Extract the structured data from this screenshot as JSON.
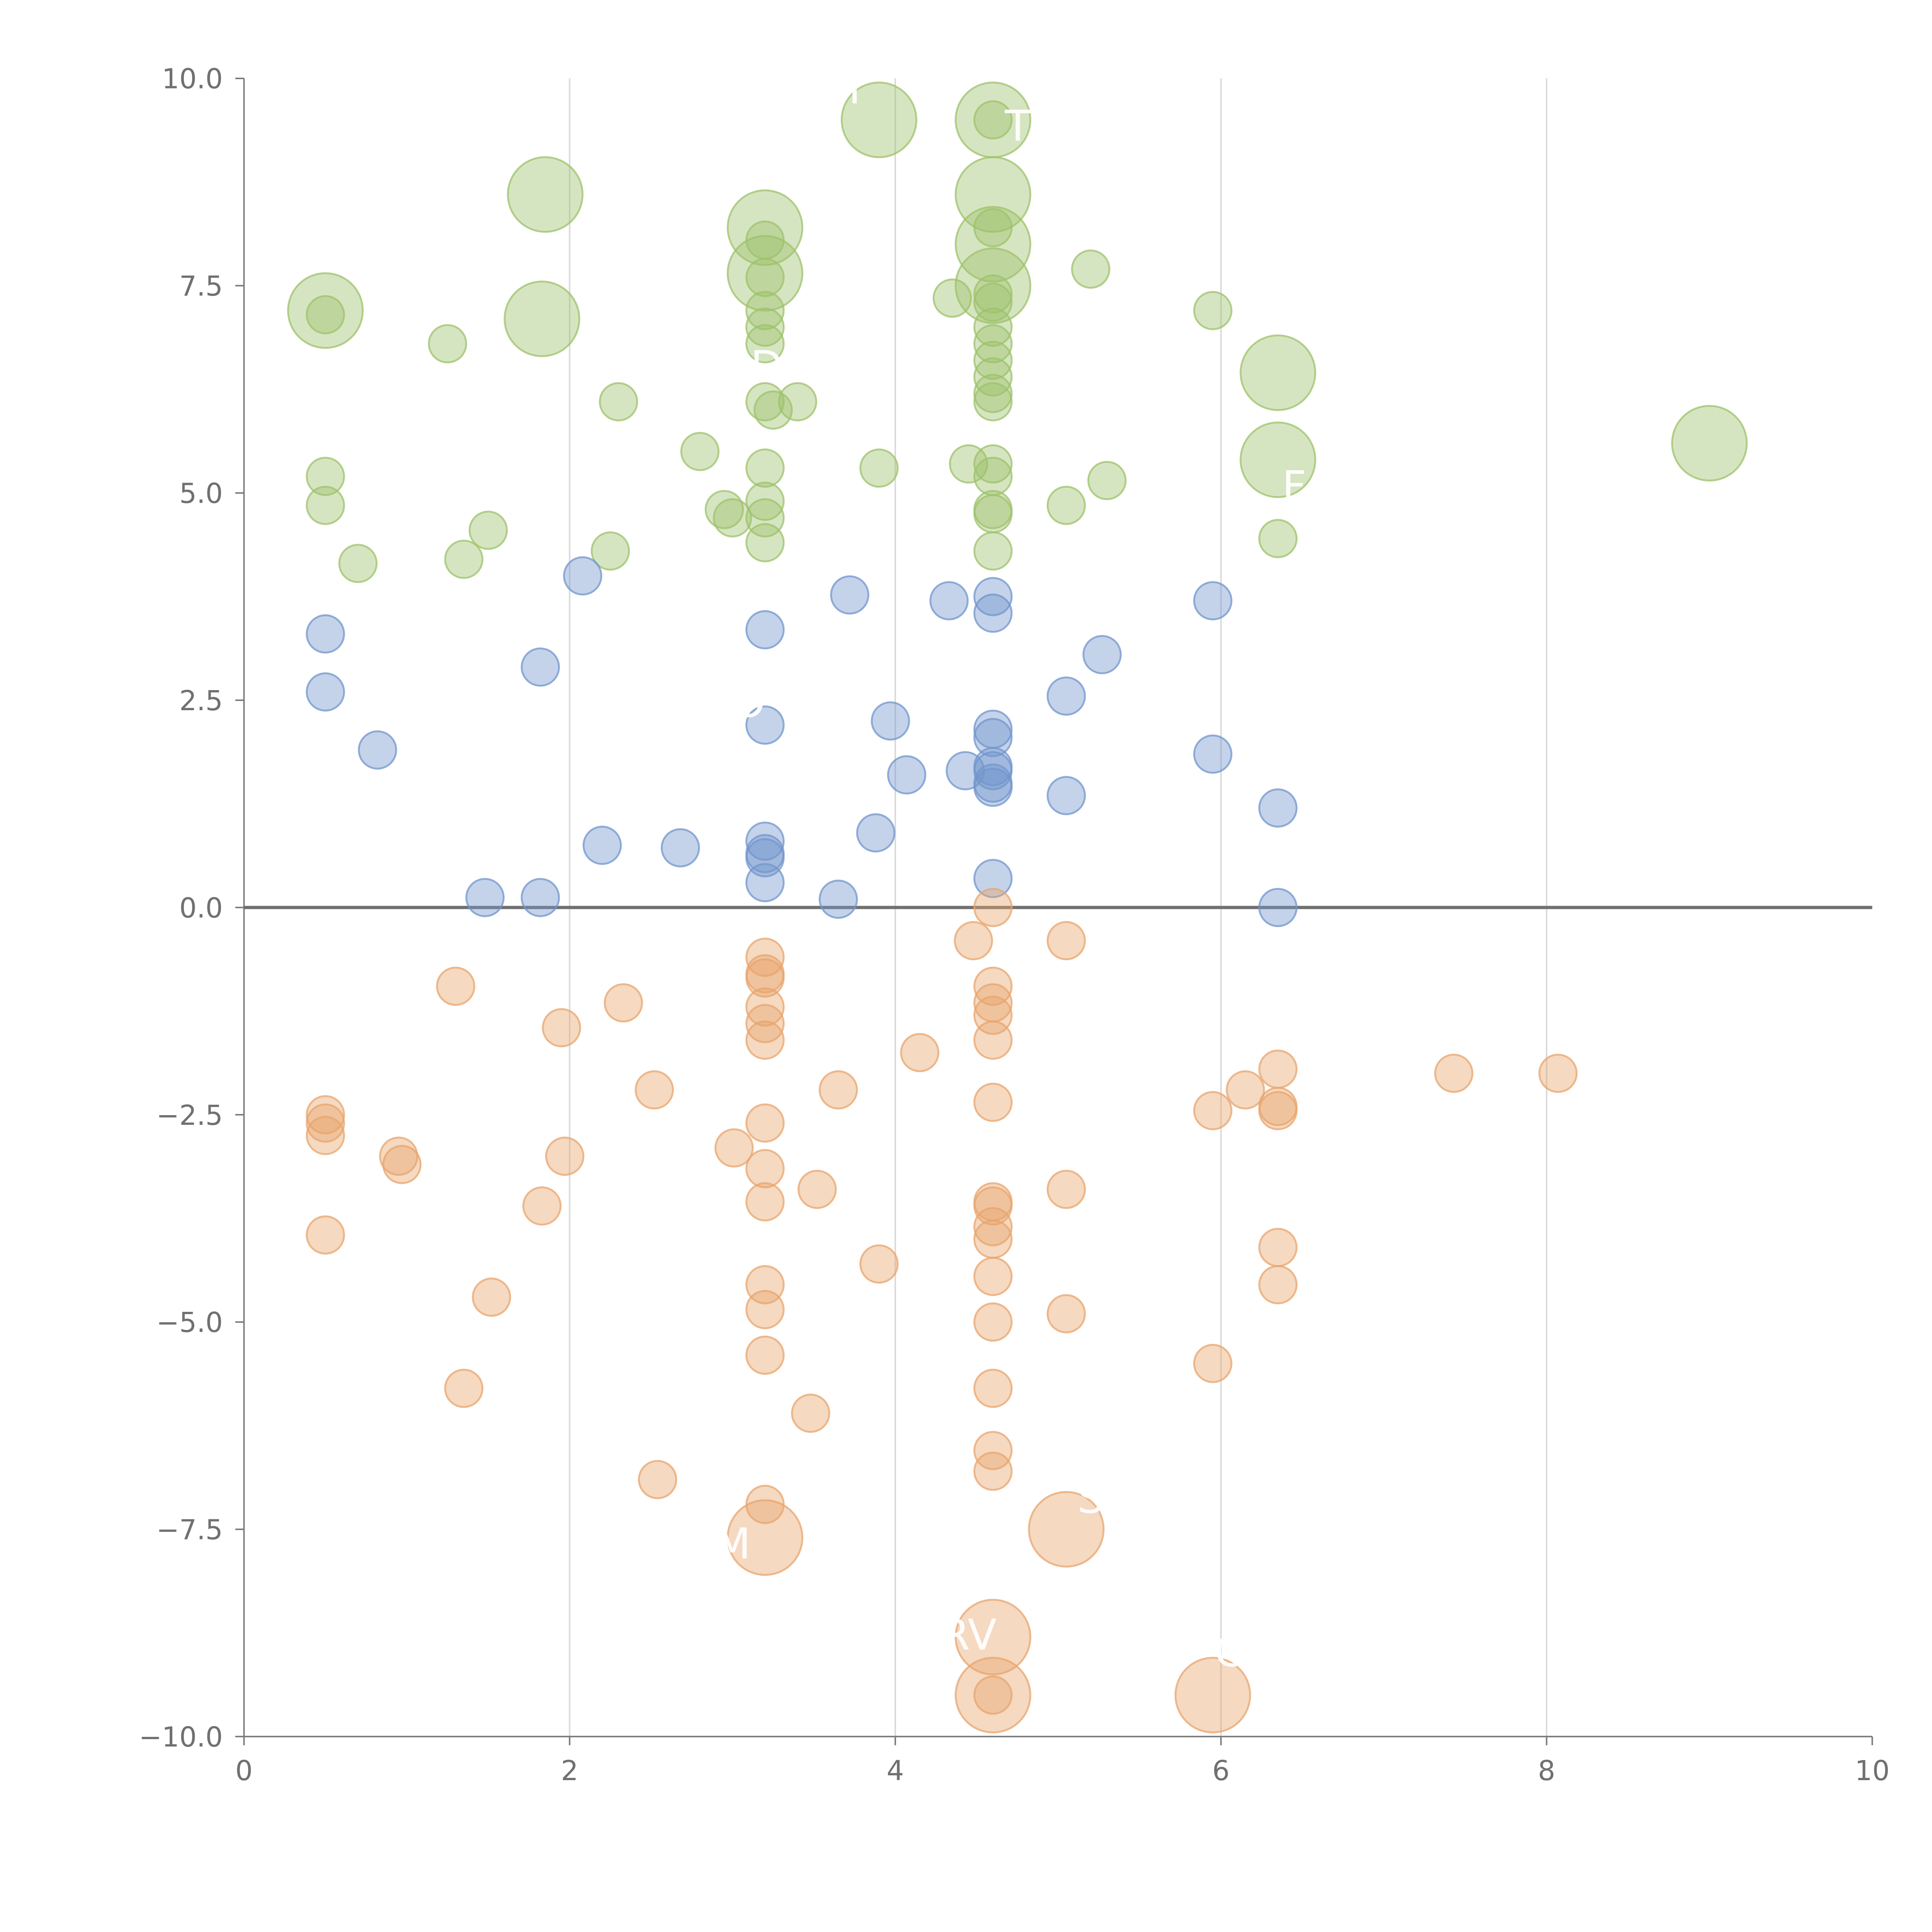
{
  "chart_data": {
    "type": "scatter",
    "title": "",
    "xlabel": "",
    "ylabel": "",
    "xlim": [
      0,
      10
    ],
    "ylim": [
      -10,
      10
    ],
    "x_ticks": [
      0,
      2,
      4,
      6,
      8,
      10
    ],
    "x_tick_labels": [
      "0",
      "2",
      "4",
      "6",
      "8",
      "10"
    ],
    "y_ticks": [
      -10,
      -7.5,
      -5,
      -2.5,
      0,
      2.5,
      5,
      7.5,
      10
    ],
    "y_tick_labels": [
      "−10.0",
      "−7.5",
      "−5.0",
      "−2.5",
      "0.0",
      "2.5",
      "5.0",
      "7.5",
      "10.0"
    ],
    "vertical_gridlines_at": [
      2,
      4,
      6,
      8
    ],
    "zero_line": 0,
    "legend": "none",
    "colors": {
      "green": "#9dc16b",
      "blue": "#7296cc",
      "orange": "#e8a46c",
      "axis": "#7a7a7a",
      "grid": "#d9d9d9",
      "zero_line": "#707070"
    },
    "series": [
      {
        "name": "green",
        "color": "green",
        "points": [
          [
            0.5,
            7.2,
            2
          ],
          [
            1.85,
            8.6,
            2
          ],
          [
            1.83,
            7.1,
            2
          ],
          [
            3.2,
            8.2,
            2
          ],
          [
            3.2,
            7.65,
            2
          ],
          [
            3.9,
            9.5,
            2
          ],
          [
            4.6,
            9.5,
            2
          ],
          [
            4.6,
            8.6,
            2
          ],
          [
            4.6,
            8.0,
            2
          ],
          [
            4.6,
            7.5,
            2
          ],
          [
            6.35,
            6.45,
            2
          ],
          [
            6.35,
            5.4,
            2
          ],
          [
            9.0,
            5.6,
            2
          ],
          [
            0.5,
            7.15,
            1
          ],
          [
            1.25,
            6.8,
            1
          ],
          [
            2.3,
            6.1,
            1
          ],
          [
            2.8,
            5.5,
            1
          ],
          [
            0.5,
            5.2,
            1
          ],
          [
            0.5,
            4.85,
            1
          ],
          [
            0.7,
            4.15,
            1
          ],
          [
            1.35,
            4.2,
            1
          ],
          [
            1.5,
            4.55,
            1
          ],
          [
            2.25,
            4.3,
            1
          ],
          [
            2.95,
            4.8,
            1
          ],
          [
            3.0,
            4.7,
            1
          ],
          [
            3.2,
            8.05,
            1
          ],
          [
            3.2,
            7.6,
            1
          ],
          [
            3.2,
            7.2,
            1
          ],
          [
            3.2,
            7.0,
            1
          ],
          [
            3.2,
            6.8,
            1
          ],
          [
            3.2,
            6.1,
            1
          ],
          [
            3.25,
            6.0,
            1
          ],
          [
            3.4,
            6.1,
            1
          ],
          [
            3.2,
            5.3,
            1
          ],
          [
            3.2,
            4.9,
            1
          ],
          [
            3.2,
            4.7,
            1
          ],
          [
            3.2,
            4.4,
            1
          ],
          [
            3.9,
            5.3,
            1
          ],
          [
            4.35,
            7.35,
            1
          ],
          [
            4.45,
            5.35,
            1
          ],
          [
            4.6,
            9.5,
            1
          ],
          [
            4.6,
            8.2,
            1
          ],
          [
            4.6,
            7.4,
            1
          ],
          [
            4.6,
            7.3,
            1
          ],
          [
            4.6,
            7.0,
            1
          ],
          [
            4.6,
            6.8,
            1
          ],
          [
            4.6,
            6.6,
            1
          ],
          [
            4.6,
            6.4,
            1
          ],
          [
            4.6,
            6.2,
            1
          ],
          [
            4.6,
            6.1,
            1
          ],
          [
            4.6,
            5.35,
            1
          ],
          [
            4.6,
            5.2,
            1
          ],
          [
            4.6,
            4.8,
            1
          ],
          [
            4.6,
            4.75,
            1
          ],
          [
            4.6,
            4.3,
            1
          ],
          [
            5.05,
            4.85,
            1
          ],
          [
            5.2,
            7.7,
            1
          ],
          [
            5.3,
            5.15,
            1
          ],
          [
            5.95,
            7.2,
            1
          ],
          [
            6.35,
            4.45,
            1
          ]
        ]
      },
      {
        "name": "blue",
        "color": "blue",
        "points": [
          [
            0.5,
            3.3,
            1
          ],
          [
            0.5,
            2.6,
            1
          ],
          [
            0.82,
            1.9,
            1
          ],
          [
            1.48,
            0.12,
            1
          ],
          [
            1.82,
            0.12,
            1
          ],
          [
            1.82,
            2.9,
            1
          ],
          [
            2.08,
            4.0,
            1
          ],
          [
            2.2,
            0.75,
            1
          ],
          [
            2.68,
            0.72,
            1
          ],
          [
            3.2,
            3.35,
            1
          ],
          [
            3.2,
            2.2,
            1
          ],
          [
            3.2,
            0.8,
            1
          ],
          [
            3.2,
            0.65,
            1
          ],
          [
            3.2,
            0.6,
            1
          ],
          [
            3.2,
            0.3,
            1
          ],
          [
            3.65,
            0.1,
            1
          ],
          [
            3.72,
            3.77,
            1
          ],
          [
            3.88,
            0.9,
            1
          ],
          [
            3.97,
            2.25,
            1
          ],
          [
            4.07,
            1.6,
            1
          ],
          [
            4.33,
            3.7,
            1
          ],
          [
            4.43,
            1.65,
            1
          ],
          [
            4.6,
            3.75,
            1
          ],
          [
            4.6,
            3.55,
            1
          ],
          [
            4.6,
            2.15,
            1
          ],
          [
            4.6,
            2.05,
            1
          ],
          [
            4.6,
            1.7,
            1
          ],
          [
            4.6,
            1.65,
            1
          ],
          [
            4.6,
            1.5,
            1
          ],
          [
            4.6,
            1.45,
            1
          ],
          [
            4.6,
            0.35,
            1
          ],
          [
            5.05,
            2.55,
            1
          ],
          [
            5.05,
            1.35,
            1
          ],
          [
            5.27,
            3.05,
            1
          ],
          [
            5.95,
            3.7,
            1
          ],
          [
            5.95,
            1.85,
            1
          ],
          [
            6.35,
            1.2,
            1
          ],
          [
            6.35,
            0.0,
            1
          ]
        ]
      },
      {
        "name": "orange",
        "color": "orange",
        "points": [
          [
            3.2,
            -7.6,
            2
          ],
          [
            5.05,
            -7.5,
            2
          ],
          [
            4.6,
            -8.8,
            2
          ],
          [
            4.6,
            -9.5,
            2
          ],
          [
            5.95,
            -9.5,
            2
          ],
          [
            0.5,
            -2.5,
            1
          ],
          [
            0.5,
            -2.6,
            1
          ],
          [
            0.5,
            -2.75,
            1
          ],
          [
            0.5,
            -3.95,
            1
          ],
          [
            0.95,
            -3.0,
            1
          ],
          [
            0.97,
            -3.1,
            1
          ],
          [
            1.3,
            -0.95,
            1
          ],
          [
            1.35,
            -5.8,
            1
          ],
          [
            1.52,
            -4.7,
            1
          ],
          [
            1.83,
            -3.6,
            1
          ],
          [
            1.95,
            -1.45,
            1
          ],
          [
            1.97,
            -3.0,
            1
          ],
          [
            2.33,
            -1.15,
            1
          ],
          [
            2.52,
            -2.2,
            1
          ],
          [
            2.54,
            -6.9,
            1
          ],
          [
            3.01,
            -2.9,
            1
          ],
          [
            3.2,
            -0.6,
            1
          ],
          [
            3.2,
            -0.8,
            1
          ],
          [
            3.2,
            -0.85,
            1
          ],
          [
            3.2,
            -1.2,
            1
          ],
          [
            3.2,
            -1.4,
            1
          ],
          [
            3.2,
            -1.6,
            1
          ],
          [
            3.2,
            -2.6,
            1
          ],
          [
            3.2,
            -3.15,
            1
          ],
          [
            3.2,
            -3.55,
            1
          ],
          [
            3.2,
            -4.55,
            1
          ],
          [
            3.2,
            -4.85,
            1
          ],
          [
            3.2,
            -5.4,
            1
          ],
          [
            3.2,
            -7.2,
            1
          ],
          [
            3.48,
            -6.1,
            1
          ],
          [
            3.52,
            -3.4,
            1
          ],
          [
            3.65,
            -2.2,
            1
          ],
          [
            3.9,
            -4.3,
            1
          ],
          [
            4.15,
            -1.75,
            1
          ],
          [
            4.48,
            -0.4,
            1
          ],
          [
            4.6,
            0.0,
            1
          ],
          [
            4.6,
            -0.95,
            1
          ],
          [
            4.6,
            -1.15,
            1
          ],
          [
            4.6,
            -1.3,
            1
          ],
          [
            4.6,
            -1.6,
            1
          ],
          [
            4.6,
            -2.35,
            1
          ],
          [
            4.6,
            -3.55,
            1
          ],
          [
            4.6,
            -3.6,
            1
          ],
          [
            4.6,
            -3.85,
            1
          ],
          [
            4.6,
            -4.0,
            1
          ],
          [
            4.6,
            -4.45,
            1
          ],
          [
            4.6,
            -5.0,
            1
          ],
          [
            4.6,
            -5.8,
            1
          ],
          [
            4.6,
            -6.55,
            1
          ],
          [
            4.6,
            -6.8,
            1
          ],
          [
            4.6,
            -9.5,
            1
          ],
          [
            5.05,
            -0.4,
            1
          ],
          [
            5.05,
            -3.4,
            1
          ],
          [
            5.05,
            -4.9,
            1
          ],
          [
            5.95,
            -2.45,
            1
          ],
          [
            5.95,
            -5.5,
            1
          ],
          [
            6.15,
            -2.2,
            1
          ],
          [
            6.35,
            -1.95,
            1
          ],
          [
            6.35,
            -2.4,
            1
          ],
          [
            6.35,
            -2.45,
            1
          ],
          [
            6.35,
            -4.1,
            1
          ],
          [
            6.35,
            -4.55,
            1
          ],
          [
            7.43,
            -2.0,
            1
          ],
          [
            8.07,
            -2.0,
            1
          ]
        ]
      }
    ],
    "annotations": [
      "TH",
      "DR",
      "M",
      "RV",
      "S",
      "C",
      "I",
      "F",
      "O"
    ]
  }
}
